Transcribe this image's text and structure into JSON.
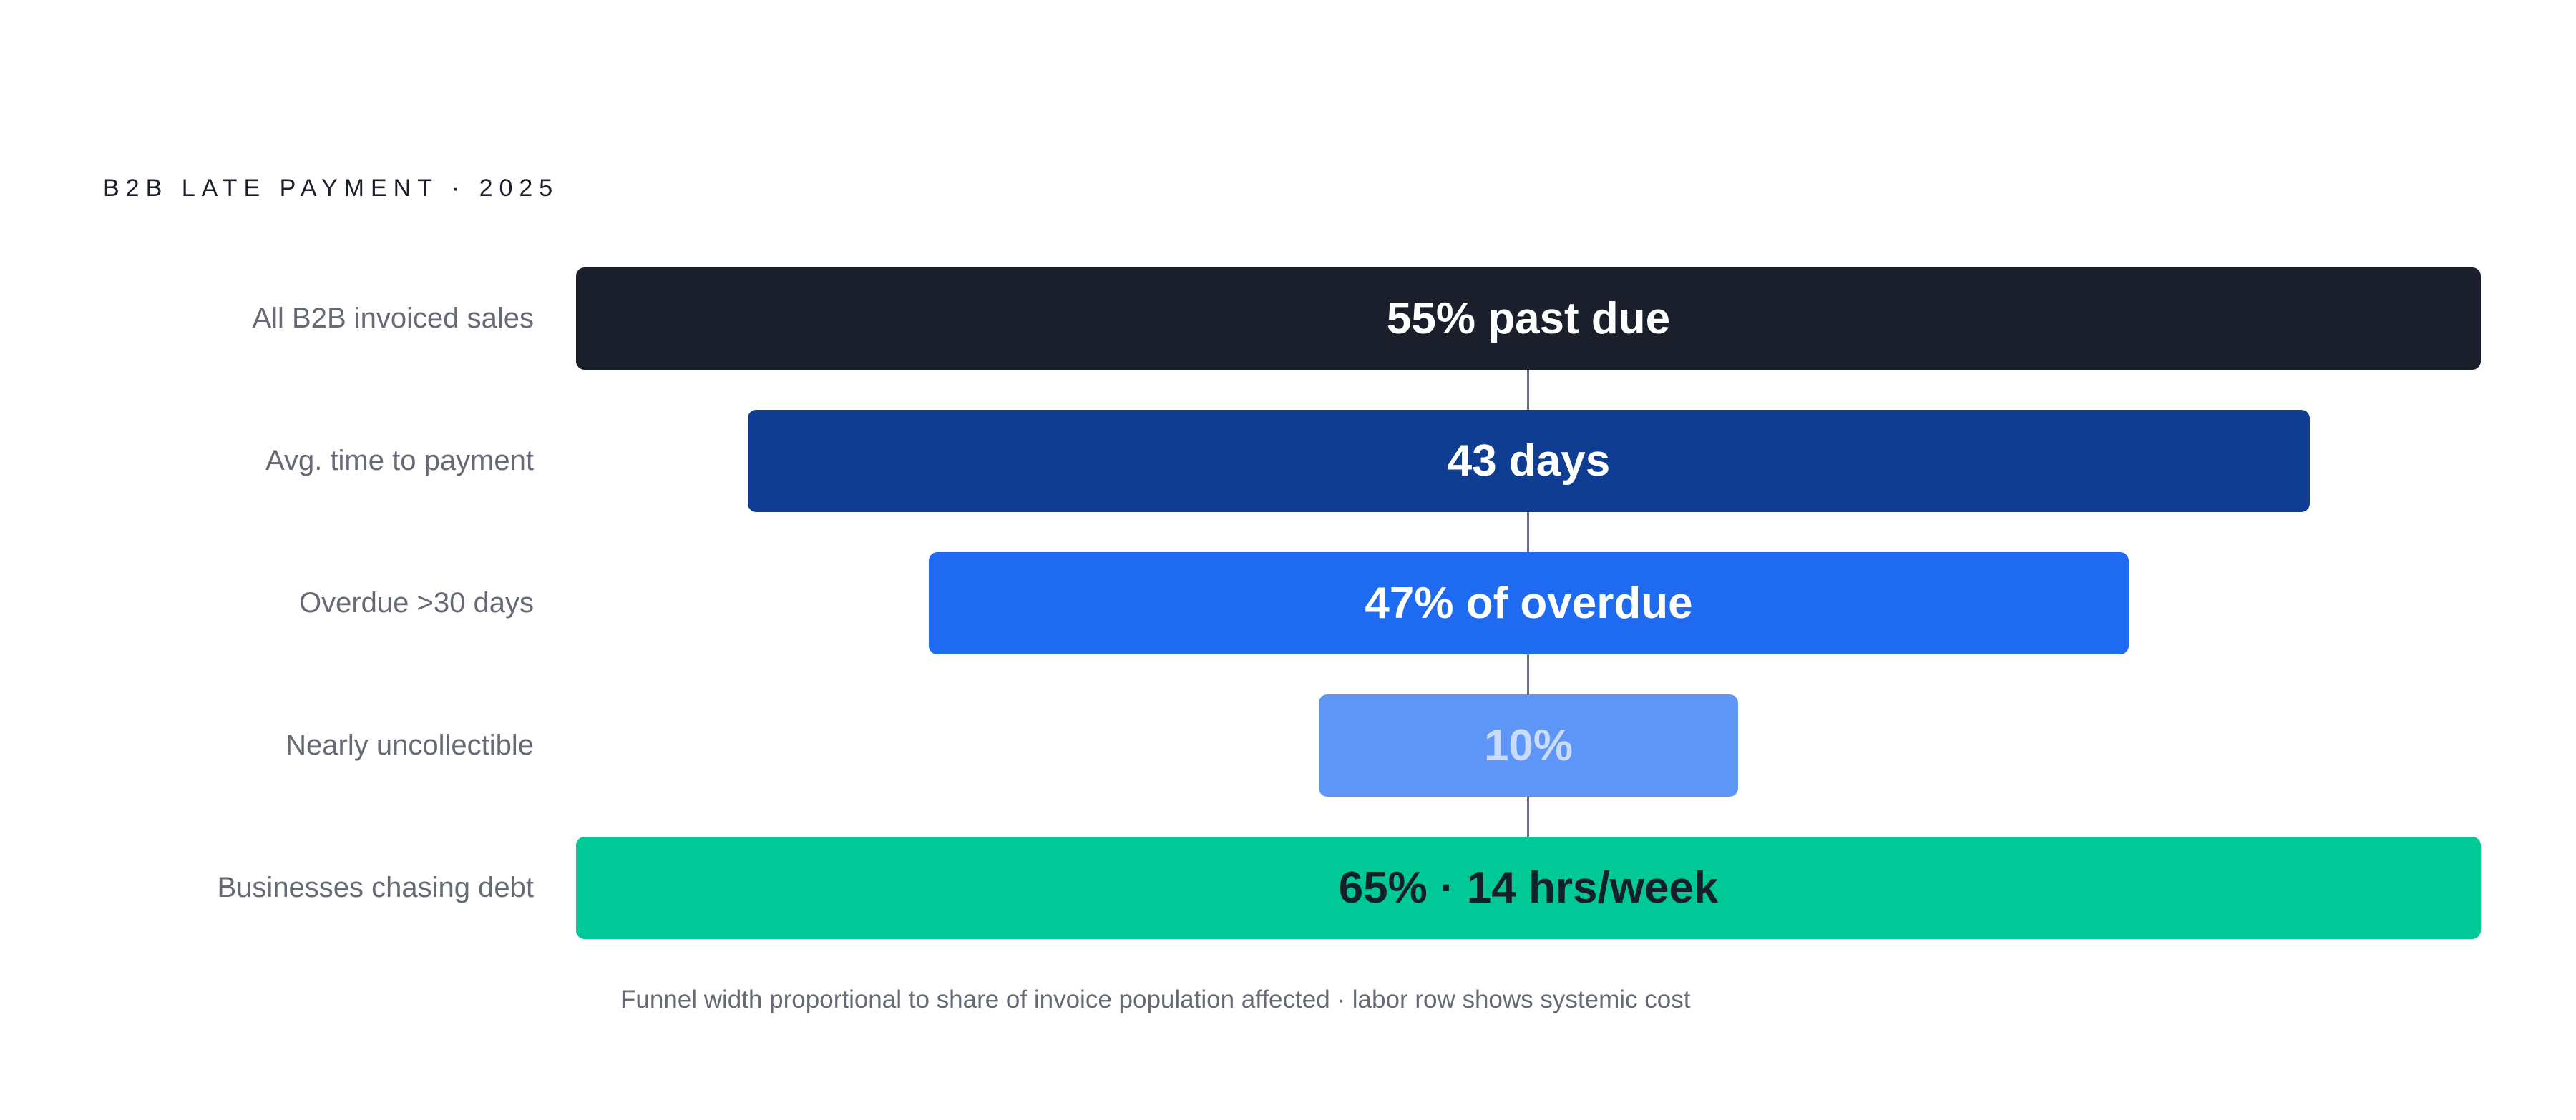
{
  "chart_data": {
    "type": "funnel",
    "title": "B2B LATE PAYMENT · 2025",
    "rows": [
      {
        "label": "All B2B invoiced sales",
        "value_label": "55% past due",
        "relative_width": 1.0,
        "color": "#1b1f2b",
        "text_color": "#ffffff"
      },
      {
        "label": "Avg. time to payment",
        "value_label": "43 days",
        "relative_width": 0.82,
        "color": "#0f3d91",
        "text_color": "#ffffff"
      },
      {
        "label": "Overdue >30 days",
        "value_label": "47% of overdue",
        "relative_width": 0.63,
        "color": "#1e6bf1",
        "text_color": "#ffffff"
      },
      {
        "label": "Nearly uncollectible",
        "value_label": "10%",
        "relative_width": 0.22,
        "color": "#5e96f7",
        "text_color": "#c9dcfb"
      },
      {
        "label": "Businesses chasing debt",
        "value_label": "65% · 14 hrs/week",
        "relative_width": 1.0,
        "color": "#00c896",
        "text_color": "#13202b"
      }
    ],
    "footnote": "Funnel width proportional to share of invoice population affected · labor row shows systemic cost"
  }
}
